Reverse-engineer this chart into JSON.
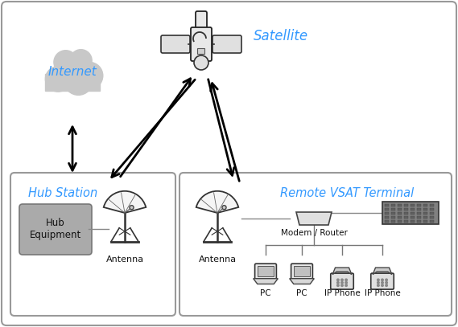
{
  "bg_color": "#ffffff",
  "border_color": "#999999",
  "blue_text": "#3399ff",
  "black_text": "#111111",
  "dark_gray": "#555555",
  "med_gray": "#888888",
  "light_gray": "#cccccc",
  "cloud_gray": "#c8c8c8",
  "hub_eq_gray": "#aaaaaa",
  "internet_label": "Internet",
  "satellite_label": "Satellite",
  "hub_label": "Hub Station",
  "remote_label": "Remote VSAT Terminal",
  "hub_eq_label": "Hub\nEquipment",
  "antenna_label": "Antenna",
  "modem_label": "Modem / Router",
  "pc_label": "PC",
  "ip_phone_label": "IP Phone",
  "fig_w": 5.69,
  "fig_h": 4.07,
  "dpi": 100
}
